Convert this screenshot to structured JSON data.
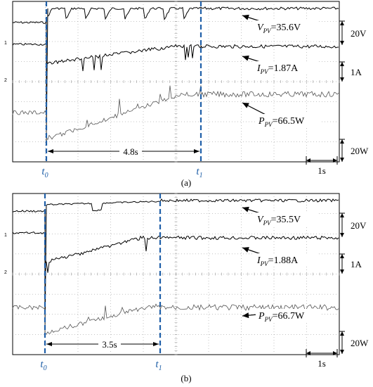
{
  "chart_data": [
    {
      "type": "line",
      "panel_label": "(a)",
      "series": [
        {
          "name": "VPV",
          "annotation": {
            "var": "V",
            "sub": "PV",
            "value": "=35.6V"
          }
        },
        {
          "name": "IPV",
          "annotation": {
            "var": "I",
            "sub": "PV",
            "value": "=1.87A"
          }
        },
        {
          "name": "PPV",
          "annotation": {
            "var": "P",
            "sub": "PV",
            "value": "=66.5W"
          }
        }
      ],
      "x_unit_s": 1,
      "t0_s": 2.0,
      "t1_s": 6.8,
      "duration_label": "4.8s",
      "markers": {
        "t0": {
          "var": "t",
          "sub": "0"
        },
        "t1": {
          "var": "t",
          "sub": "1"
        }
      },
      "scales": {
        "voltage": "20V",
        "current": "1A",
        "power": "20W",
        "time": "1s"
      },
      "channel_markers": [
        "1",
        "2"
      ],
      "steady_values": {
        "V": 35.6,
        "I": 1.87,
        "P": 66.5
      }
    },
    {
      "type": "line",
      "panel_label": "(b)",
      "series": [
        {
          "name": "VPV",
          "annotation": {
            "var": "V",
            "sub": "PV",
            "value": "=35.5V"
          }
        },
        {
          "name": "IPV",
          "annotation": {
            "var": "I",
            "sub": "PV",
            "value": "=1.88A"
          }
        },
        {
          "name": "PPV",
          "annotation": {
            "var": "P",
            "sub": "PV",
            "value": "=66.7W"
          }
        }
      ],
      "x_unit_s": 1,
      "t0_s": 2.0,
      "t1_s": 5.5,
      "duration_label": "3.5s",
      "markers": {
        "t0": {
          "var": "t",
          "sub": "0"
        },
        "t1": {
          "var": "t",
          "sub": "1"
        }
      },
      "scales": {
        "voltage": "20V",
        "current": "1A",
        "power": "20W",
        "time": "1s"
      },
      "channel_markers": [
        "1",
        "2"
      ],
      "steady_values": {
        "V": 35.5,
        "I": 1.88,
        "P": 66.7
      }
    }
  ],
  "colors": {
    "marker": "#1f5fa8",
    "trace": "#000000",
    "power_trace": "#555555",
    "grid": "#888888"
  }
}
